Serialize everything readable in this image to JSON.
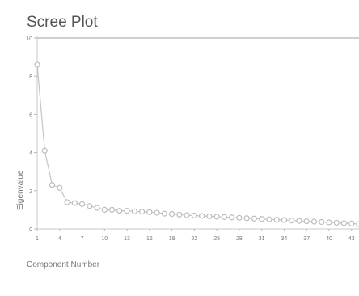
{
  "chart_data": {
    "type": "line",
    "title": "Scree Plot",
    "xlabel": "Component Number",
    "ylabel": "Eigenvalue",
    "xlim": [
      1,
      44
    ],
    "ylim": [
      0,
      10
    ],
    "x_ticks": [
      1,
      4,
      7,
      10,
      13,
      16,
      19,
      22,
      25,
      28,
      31,
      34,
      37,
      40,
      43
    ],
    "y_ticks": [
      0,
      2,
      4,
      6,
      8,
      10
    ],
    "grid": false,
    "reference_line_y": 10,
    "series": [
      {
        "marker": "open-circle",
        "x": [
          1,
          2,
          3,
          4,
          5,
          6,
          7,
          8,
          9,
          10,
          11,
          12,
          13,
          14,
          15,
          16,
          17,
          18,
          19,
          20,
          21,
          22,
          23,
          24,
          25,
          26,
          27,
          28,
          29,
          30,
          31,
          32,
          33,
          34,
          35,
          36,
          37,
          38,
          39,
          40,
          41,
          42,
          43,
          44
        ],
        "values": [
          8.6,
          4.1,
          2.3,
          2.15,
          1.4,
          1.35,
          1.3,
          1.2,
          1.1,
          1.0,
          1.0,
          0.95,
          0.95,
          0.92,
          0.9,
          0.88,
          0.85,
          0.8,
          0.78,
          0.75,
          0.72,
          0.7,
          0.68,
          0.66,
          0.64,
          0.62,
          0.6,
          0.58,
          0.56,
          0.54,
          0.52,
          0.5,
          0.48,
          0.46,
          0.44,
          0.42,
          0.4,
          0.38,
          0.36,
          0.34,
          0.32,
          0.3,
          0.28,
          0.25
        ]
      }
    ]
  }
}
